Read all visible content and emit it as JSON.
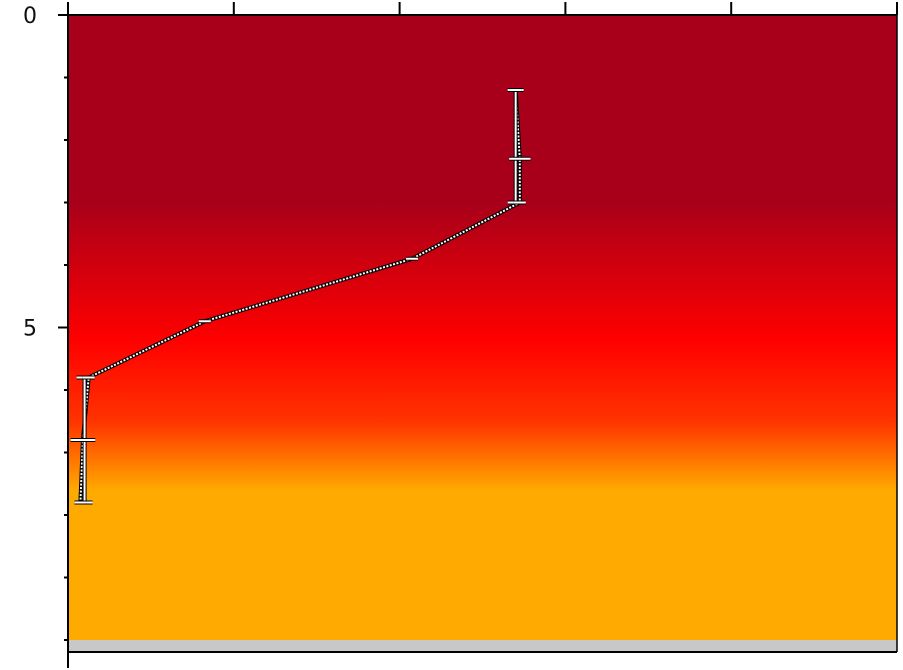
{
  "chart_data": {
    "type": "line",
    "orientation": "vertical-profile",
    "y_axis": {
      "inverted": true,
      "range": [
        0,
        10
      ],
      "major_ticks": [
        0,
        5
      ],
      "major_tick_labels": [
        "0",
        "5"
      ],
      "minor_ticks": [
        0,
        1,
        2,
        3,
        4,
        5,
        6,
        7,
        8,
        9,
        10
      ]
    },
    "x_axis": {
      "position": "top",
      "range": [
        0,
        10
      ],
      "ticks": [
        0,
        2,
        4,
        6,
        8,
        10
      ],
      "tick_labels": []
    },
    "background_gradient": {
      "direction": "vertical",
      "stops": [
        {
          "depth": 0,
          "color": "#a8001a"
        },
        {
          "depth": 3,
          "color": "#a8001a"
        },
        {
          "depth": 5.2,
          "color": "#ff0000"
        },
        {
          "depth": 6.5,
          "color": "#ff3300"
        },
        {
          "depth": 7.6,
          "color": "#ffaa00"
        },
        {
          "depth": 10,
          "color": "#ffaa00"
        }
      ]
    },
    "series": [
      {
        "marker": "error-bar",
        "line_style": "dashed-white",
        "points": [
          {
            "y": 1.2,
            "x": 5.4
          },
          {
            "y": 2.3,
            "x": 5.45,
            "err_x": 0.08
          },
          {
            "y": 3.0,
            "x": 5.45
          },
          {
            "y": 3.9,
            "x": 4.15
          },
          {
            "y": 4.9,
            "x": 1.65
          },
          {
            "y": 5.8,
            "x": 0.25
          },
          {
            "y": 6.8,
            "x": 0.18,
            "err_x": 0.1
          },
          {
            "y": 7.8,
            "x": 0.15
          }
        ],
        "error_bars": [
          {
            "x": 5.4,
            "y_low": 1.2,
            "y_high": 3.0
          },
          {
            "x": 0.2,
            "y_low": 5.8,
            "y_high": 7.8
          }
        ]
      }
    ],
    "bottom_band_color": "#c8c8c8"
  }
}
